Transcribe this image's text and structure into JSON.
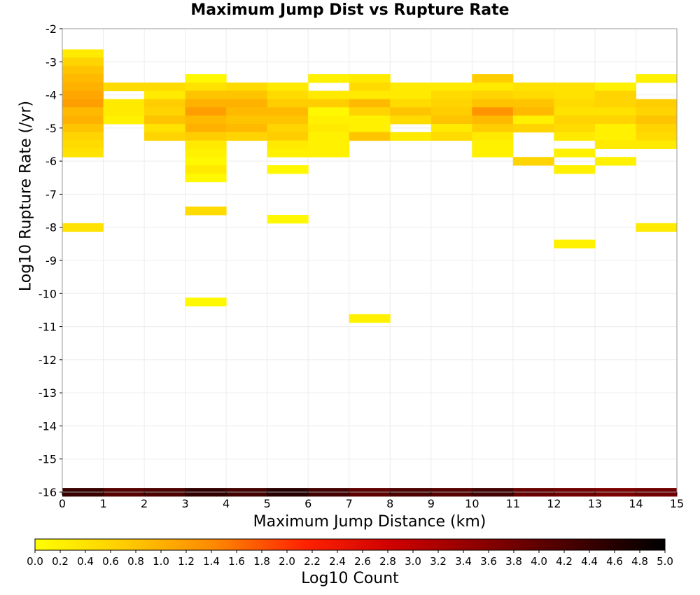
{
  "chart_data": {
    "type": "heatmap",
    "title": "Maximum Jump Dist vs Rupture Rate",
    "xlabel": "Maximum Jump Distance (km)",
    "ylabel": "Log10 Rupture Rate (/yr)",
    "xlim": [
      0,
      15
    ],
    "ylim": [
      -16,
      -2
    ],
    "x_bin_width": 1,
    "y_bin_height": 0.25,
    "x_ticks": [
      "0",
      "1",
      "2",
      "3",
      "4",
      "5",
      "6",
      "7",
      "8",
      "9",
      "10",
      "11",
      "12",
      "13",
      "14",
      "15"
    ],
    "y_ticks": [
      "-2",
      "-3",
      "-4",
      "-5",
      "-6",
      "-7",
      "-8",
      "-9",
      "-10",
      "-11",
      "-12",
      "-13",
      "-14",
      "-15",
      "-16"
    ],
    "grid": true,
    "colorbar": {
      "title": "Log10 Count",
      "min": 0.0,
      "max": 5.0,
      "ticks": [
        "0.0",
        "0.2",
        "0.4",
        "0.6",
        "0.8",
        "1.0",
        "1.2",
        "1.4",
        "1.6",
        "1.8",
        "2.0",
        "2.2",
        "2.4",
        "2.6",
        "2.8",
        "3.0",
        "3.2",
        "3.4",
        "3.6",
        "3.8",
        "4.0",
        "4.2",
        "4.4",
        "4.6",
        "4.8",
        "5.0"
      ],
      "stops": [
        "#ffff00",
        "#ffcc00",
        "#ff8800",
        "#ff2200",
        "#cc0000",
        "#880000",
        "#440000",
        "#000000"
      ]
    },
    "cells": [
      {
        "x": 0,
        "y": -2.75,
        "v": 0.3
      },
      {
        "x": 0,
        "y": -3.0,
        "v": 0.6
      },
      {
        "x": 0,
        "y": -3.25,
        "v": 0.8
      },
      {
        "x": 0,
        "y": -3.5,
        "v": 0.9
      },
      {
        "x": 0,
        "y": -3.75,
        "v": 1.0
      },
      {
        "x": 0,
        "y": -4.0,
        "v": 1.1
      },
      {
        "x": 0,
        "y": -4.25,
        "v": 1.2
      },
      {
        "x": 0,
        "y": -4.5,
        "v": 0.9
      },
      {
        "x": 0,
        "y": -4.75,
        "v": 1.0
      },
      {
        "x": 0,
        "y": -5.0,
        "v": 0.8
      },
      {
        "x": 0,
        "y": -5.25,
        "v": 0.6
      },
      {
        "x": 0,
        "y": -5.5,
        "v": 0.5
      },
      {
        "x": 0,
        "y": -5.75,
        "v": 0.4
      },
      {
        "x": 0,
        "y": -8.0,
        "v": 0.4
      },
      {
        "x": 0,
        "y": -16.0,
        "v": 4.4
      },
      {
        "x": 1,
        "y": -3.75,
        "v": 0.5
      },
      {
        "x": 1,
        "y": -4.25,
        "v": 0.3
      },
      {
        "x": 1,
        "y": -4.5,
        "v": 0.3
      },
      {
        "x": 1,
        "y": -4.75,
        "v": 0.2
      },
      {
        "x": 1,
        "y": -16.0,
        "v": 4.1
      },
      {
        "x": 2,
        "y": -3.75,
        "v": 0.5
      },
      {
        "x": 2,
        "y": -4.0,
        "v": 0.3
      },
      {
        "x": 2,
        "y": -4.25,
        "v": 0.7
      },
      {
        "x": 2,
        "y": -4.5,
        "v": 0.6
      },
      {
        "x": 2,
        "y": -4.75,
        "v": 0.8
      },
      {
        "x": 2,
        "y": -5.0,
        "v": 0.4
      },
      {
        "x": 2,
        "y": -5.25,
        "v": 0.6
      },
      {
        "x": 2,
        "y": -16.0,
        "v": 4.2
      },
      {
        "x": 3,
        "y": -3.5,
        "v": 0.1
      },
      {
        "x": 3,
        "y": -3.75,
        "v": 0.4
      },
      {
        "x": 3,
        "y": -4.0,
        "v": 0.8
      },
      {
        "x": 3,
        "y": -4.25,
        "v": 1.0
      },
      {
        "x": 3,
        "y": -4.5,
        "v": 1.2
      },
      {
        "x": 3,
        "y": -4.75,
        "v": 0.9
      },
      {
        "x": 3,
        "y": -5.0,
        "v": 1.0
      },
      {
        "x": 3,
        "y": -5.25,
        "v": 0.7
      },
      {
        "x": 3,
        "y": -5.5,
        "v": 0.3
      },
      {
        "x": 3,
        "y": -5.75,
        "v": 0.2
      },
      {
        "x": 3,
        "y": -6.0,
        "v": 0.1
      },
      {
        "x": 3,
        "y": -6.25,
        "v": 0.3
      },
      {
        "x": 3,
        "y": -6.5,
        "v": 0.1
      },
      {
        "x": 3,
        "y": -7.5,
        "v": 0.5
      },
      {
        "x": 3,
        "y": -10.25,
        "v": 0.1
      },
      {
        "x": 3,
        "y": -16.0,
        "v": 4.5
      },
      {
        "x": 4,
        "y": -3.75,
        "v": 0.5
      },
      {
        "x": 4,
        "y": -4.0,
        "v": 0.8
      },
      {
        "x": 4,
        "y": -4.25,
        "v": 1.0
      },
      {
        "x": 4,
        "y": -4.5,
        "v": 0.9
      },
      {
        "x": 4,
        "y": -4.75,
        "v": 0.8
      },
      {
        "x": 4,
        "y": -5.0,
        "v": 0.9
      },
      {
        "x": 4,
        "y": -5.25,
        "v": 0.6
      },
      {
        "x": 4,
        "y": -16.0,
        "v": 4.3
      },
      {
        "x": 5,
        "y": -3.75,
        "v": 0.3
      },
      {
        "x": 5,
        "y": -4.0,
        "v": 0.5
      },
      {
        "x": 5,
        "y": -4.25,
        "v": 0.7
      },
      {
        "x": 5,
        "y": -4.5,
        "v": 0.9
      },
      {
        "x": 5,
        "y": -4.75,
        "v": 0.8
      },
      {
        "x": 5,
        "y": -5.0,
        "v": 0.6
      },
      {
        "x": 5,
        "y": -5.25,
        "v": 0.7
      },
      {
        "x": 5,
        "y": -5.5,
        "v": 0.3
      },
      {
        "x": 5,
        "y": -5.75,
        "v": 0.2
      },
      {
        "x": 5,
        "y": -6.25,
        "v": 0.1
      },
      {
        "x": 5,
        "y": -7.75,
        "v": 0.1
      },
      {
        "x": 5,
        "y": -16.0,
        "v": 4.6
      },
      {
        "x": 6,
        "y": -3.5,
        "v": 0.2
      },
      {
        "x": 6,
        "y": -4.0,
        "v": 0.3
      },
      {
        "x": 6,
        "y": -4.25,
        "v": 0.7
      },
      {
        "x": 6,
        "y": -4.5,
        "v": 0.1
      },
      {
        "x": 6,
        "y": -4.75,
        "v": 0.2
      },
      {
        "x": 6,
        "y": -5.0,
        "v": 0.3
      },
      {
        "x": 6,
        "y": -5.25,
        "v": 0.2
      },
      {
        "x": 6,
        "y": -5.5,
        "v": 0.2
      },
      {
        "x": 6,
        "y": -5.75,
        "v": 0.2
      },
      {
        "x": 6,
        "y": -16.0,
        "v": 4.3
      },
      {
        "x": 7,
        "y": -3.5,
        "v": 0.3
      },
      {
        "x": 7,
        "y": -3.75,
        "v": 0.5
      },
      {
        "x": 7,
        "y": -4.0,
        "v": 0.3
      },
      {
        "x": 7,
        "y": -4.25,
        "v": 0.9
      },
      {
        "x": 7,
        "y": -4.5,
        "v": 0.6
      },
      {
        "x": 7,
        "y": -4.75,
        "v": 0.2
      },
      {
        "x": 7,
        "y": -5.0,
        "v": 0.2
      },
      {
        "x": 7,
        "y": -5.25,
        "v": 0.8
      },
      {
        "x": 7,
        "y": -10.75,
        "v": 0.2
      },
      {
        "x": 7,
        "y": -16.0,
        "v": 4.0
      },
      {
        "x": 8,
        "y": -3.75,
        "v": 0.3
      },
      {
        "x": 8,
        "y": -4.0,
        "v": 0.3
      },
      {
        "x": 8,
        "y": -4.25,
        "v": 0.5
      },
      {
        "x": 8,
        "y": -4.5,
        "v": 0.8
      },
      {
        "x": 8,
        "y": -4.75,
        "v": 0.5
      },
      {
        "x": 8,
        "y": -5.25,
        "v": 0.3
      },
      {
        "x": 8,
        "y": -16.0,
        "v": 4.2
      },
      {
        "x": 9,
        "y": -3.75,
        "v": 0.3
      },
      {
        "x": 9,
        "y": -4.0,
        "v": 0.5
      },
      {
        "x": 9,
        "y": -4.25,
        "v": 0.6
      },
      {
        "x": 9,
        "y": -4.5,
        "v": 0.7
      },
      {
        "x": 9,
        "y": -4.75,
        "v": 0.8
      },
      {
        "x": 9,
        "y": -5.0,
        "v": 0.3
      },
      {
        "x": 9,
        "y": -5.25,
        "v": 0.5
      },
      {
        "x": 9,
        "y": -16.0,
        "v": 4.1
      },
      {
        "x": 10,
        "y": -3.5,
        "v": 0.7
      },
      {
        "x": 10,
        "y": -3.75,
        "v": 0.3
      },
      {
        "x": 10,
        "y": -4.0,
        "v": 0.6
      },
      {
        "x": 10,
        "y": -4.25,
        "v": 0.8
      },
      {
        "x": 10,
        "y": -4.5,
        "v": 1.3
      },
      {
        "x": 10,
        "y": -4.75,
        "v": 0.9
      },
      {
        "x": 10,
        "y": -5.0,
        "v": 0.7
      },
      {
        "x": 10,
        "y": -5.25,
        "v": 0.3
      },
      {
        "x": 10,
        "y": -5.5,
        "v": 0.2
      },
      {
        "x": 10,
        "y": -5.75,
        "v": 0.2
      },
      {
        "x": 10,
        "y": -16.0,
        "v": 4.3
      },
      {
        "x": 11,
        "y": -3.75,
        "v": 0.4
      },
      {
        "x": 11,
        "y": -4.0,
        "v": 0.5
      },
      {
        "x": 11,
        "y": -4.25,
        "v": 0.8
      },
      {
        "x": 11,
        "y": -4.5,
        "v": 0.9
      },
      {
        "x": 11,
        "y": -4.75,
        "v": 0.2
      },
      {
        "x": 11,
        "y": -5.0,
        "v": 0.6
      },
      {
        "x": 11,
        "y": -6.0,
        "v": 0.6
      },
      {
        "x": 11,
        "y": -16.0,
        "v": 3.9
      },
      {
        "x": 12,
        "y": -3.75,
        "v": 0.4
      },
      {
        "x": 12,
        "y": -4.0,
        "v": 0.4
      },
      {
        "x": 12,
        "y": -4.25,
        "v": 0.5
      },
      {
        "x": 12,
        "y": -4.5,
        "v": 0.4
      },
      {
        "x": 12,
        "y": -4.75,
        "v": 0.6
      },
      {
        "x": 12,
        "y": -5.0,
        "v": 0.5
      },
      {
        "x": 12,
        "y": -5.25,
        "v": 0.3
      },
      {
        "x": 12,
        "y": -5.75,
        "v": 0.2
      },
      {
        "x": 12,
        "y": -6.25,
        "v": 0.2
      },
      {
        "x": 12,
        "y": -8.5,
        "v": 0.2
      },
      {
        "x": 12,
        "y": -16.0,
        "v": 3.8
      },
      {
        "x": 13,
        "y": -3.75,
        "v": 0.2
      },
      {
        "x": 13,
        "y": -4.0,
        "v": 0.6
      },
      {
        "x": 13,
        "y": -4.25,
        "v": 0.6
      },
      {
        "x": 13,
        "y": -4.5,
        "v": 0.4
      },
      {
        "x": 13,
        "y": -4.75,
        "v": 0.6
      },
      {
        "x": 13,
        "y": -5.0,
        "v": 0.2
      },
      {
        "x": 13,
        "y": -5.25,
        "v": 0.2
      },
      {
        "x": 13,
        "y": -5.5,
        "v": 0.3
      },
      {
        "x": 13,
        "y": -6.0,
        "v": 0.2
      },
      {
        "x": 13,
        "y": -16.0,
        "v": 3.7
      },
      {
        "x": 14,
        "y": -3.5,
        "v": 0.2
      },
      {
        "x": 14,
        "y": -4.25,
        "v": 0.7
      },
      {
        "x": 14,
        "y": -4.5,
        "v": 0.6
      },
      {
        "x": 14,
        "y": -4.75,
        "v": 0.8
      },
      {
        "x": 14,
        "y": -5.0,
        "v": 0.6
      },
      {
        "x": 14,
        "y": -5.25,
        "v": 0.5
      },
      {
        "x": 14,
        "y": -5.5,
        "v": 0.3
      },
      {
        "x": 14,
        "y": -8.0,
        "v": 0.3
      },
      {
        "x": 14,
        "y": -16.0,
        "v": 3.8
      }
    ]
  }
}
